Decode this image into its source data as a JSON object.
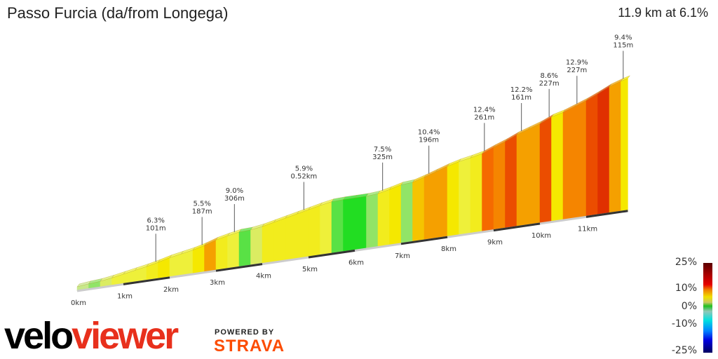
{
  "header": {
    "title": "Passo Furcia (da/from Longega)",
    "summary": "11.9 km at 6.1%"
  },
  "chart_data": {
    "type": "area",
    "title": "Passo Furcia (da/from Longega)",
    "distance_km": 11.9,
    "avg_gradient_pct": 6.1,
    "x_ticks": [
      "0km",
      "1km",
      "2km",
      "3km",
      "4km",
      "5km",
      "6km",
      "7km",
      "8km",
      "9km",
      "10km",
      "11km"
    ],
    "segment_length_km": 0.25,
    "gradients_pct": [
      3,
      2,
      4,
      5,
      5,
      5,
      6,
      7,
      5,
      5,
      7,
      9,
      6,
      5,
      1,
      4,
      6,
      6,
      6,
      6,
      6,
      5,
      1,
      0,
      0,
      2,
      6,
      7,
      2,
      8,
      9,
      9,
      7,
      5,
      6,
      11,
      10,
      12,
      9,
      9,
      12,
      7,
      10,
      10,
      12,
      13,
      9,
      7,
      1,
      8
    ],
    "annotations": [
      {
        "km": 1.7,
        "gradient": "6.3%",
        "length": "101m"
      },
      {
        "km": 2.7,
        "gradient": "5.5%",
        "length": "187m"
      },
      {
        "km": 3.4,
        "gradient": "9.0%",
        "length": "306m"
      },
      {
        "km": 4.9,
        "gradient": "5.9%",
        "length": "0.52km"
      },
      {
        "km": 6.6,
        "gradient": "7.5%",
        "length": "325m"
      },
      {
        "km": 7.6,
        "gradient": "10.4%",
        "length": "196m"
      },
      {
        "km": 8.8,
        "gradient": "12.4%",
        "length": "261m"
      },
      {
        "km": 9.6,
        "gradient": "12.2%",
        "length": "161m"
      },
      {
        "km": 10.2,
        "gradient": "8.6%",
        "length": "227m"
      },
      {
        "km": 10.8,
        "gradient": "12.9%",
        "length": "227m"
      },
      {
        "km": 11.8,
        "gradient": "9.4%",
        "length": "115m"
      }
    ],
    "color_scale": {
      "labels": [
        "25%",
        "10%",
        "0%",
        "-10%",
        "-25%"
      ]
    }
  },
  "branding": {
    "logo_velo": "velo",
    "logo_viewer": "viewer",
    "powered_by": "POWERED BY",
    "strava": "STRAVA"
  }
}
